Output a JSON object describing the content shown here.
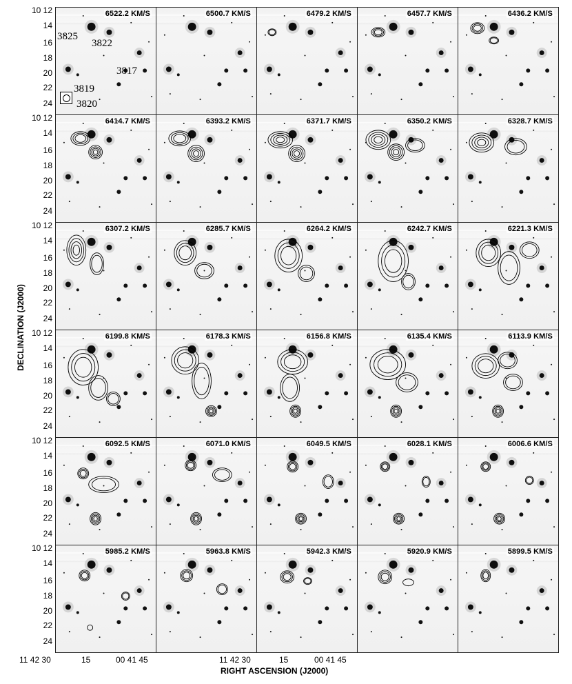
{
  "figure": {
    "y_axis_title": "DECLINATION (J2000)",
    "x_axis_title": "RIGHT ASCENSION (J2000)",
    "dec_ticks": [
      "10 12",
      "14",
      "16",
      "18",
      "20",
      "22",
      "24"
    ],
    "ra_ticks_left": [
      "11 42 30",
      "15",
      "00 41 45"
    ],
    "ra_ticks_right": [
      "11 42 30",
      "15",
      "00 41 45"
    ],
    "galaxy_labels": [
      "3825",
      "3822",
      "3817",
      "3819",
      "3820"
    ],
    "channels": [
      "6522.2 KM/S",
      "6500.7 KM/S",
      "6479.2 KM/S",
      "6457.7 KM/S",
      "6436.2 KM/S",
      "6414.7 KM/S",
      "6393.2 KM/S",
      "6371.7 KM/S",
      "6350.2 KM/S",
      "6328.7 KM/S",
      "6307.2 KM/S",
      "6285.7 KM/S",
      "6264.2 KM/S",
      "6242.7 KM/S",
      "6221.3 KM/S",
      "6199.8 KM/S",
      "6178.3 KM/S",
      "6156.8 KM/S",
      "6135.4 KM/S",
      "6113.9 KM/S",
      "6092.5 KM/S",
      "6071.0 KM/S",
      "6049.5 KM/S",
      "6028.1 KM/S",
      "6006.6 KM/S",
      "5985.2 KM/S",
      "5963.8 KM/S",
      "5942.3 KM/S",
      "5920.9 KM/S",
      "5899.5 KM/S"
    ]
  }
}
